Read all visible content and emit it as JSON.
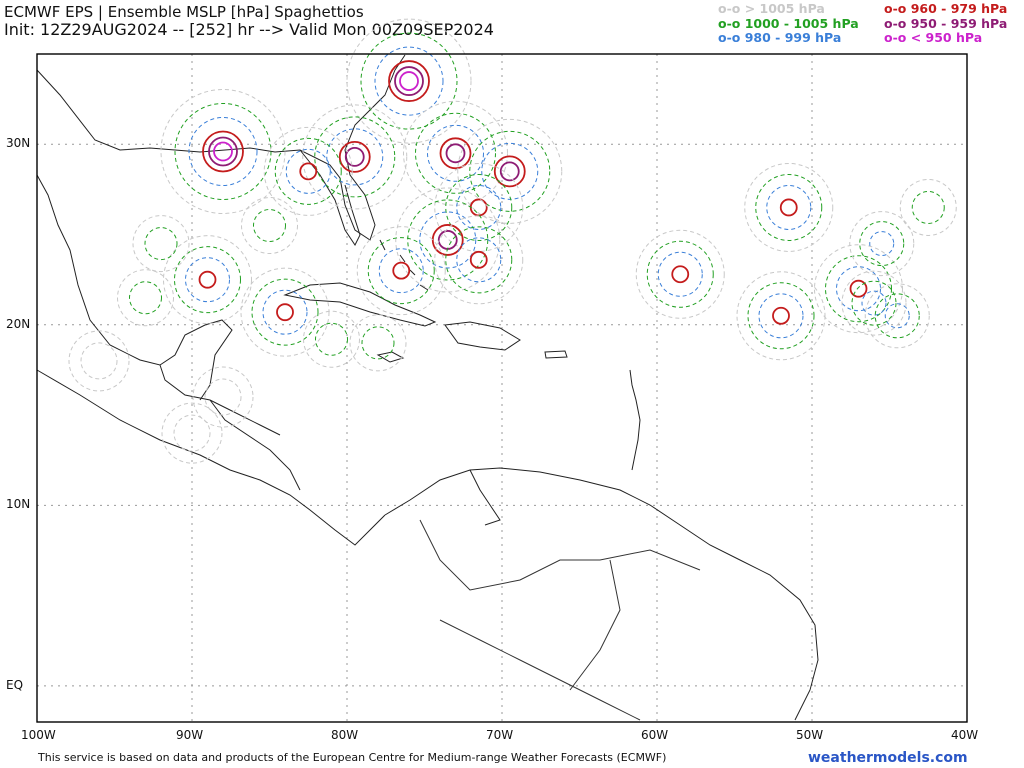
{
  "title": {
    "line1": "ECMWF EPS | Ensemble MSLP [hPa] Spaghettios",
    "line2": "Init: 12Z29AUG2024 -- [252] hr --> Valid Mon 00Z09SEP2024"
  },
  "legend": [
    {
      "label": "o-o > 1005 hPa",
      "color": "#c8c8c8"
    },
    {
      "label": "o-o 1000 - 1005 hPa",
      "color": "#22a022"
    },
    {
      "label": "o-o 980 - 999 hPa",
      "color": "#3a7fd8"
    },
    {
      "label": "o-o 960 - 979 hPa",
      "color": "#c41c1c"
    },
    {
      "label": "o-o 950 - 959 hPa",
      "color": "#8e1c74"
    },
    {
      "label": "o-o < 950 hPa",
      "color": "#cc22cc"
    }
  ],
  "axes": {
    "x_ticks": [
      "100W",
      "90W",
      "80W",
      "70W",
      "60W",
      "50W",
      "40W"
    ],
    "y_ticks": [
      "30N",
      "20N",
      "10N",
      "EQ"
    ]
  },
  "footer": {
    "attribution": "This service is based on data and products of the European Centre for Medium-range Weather Forecasts (ECMWF)",
    "brand": "weathermodels.com"
  },
  "map_data": {
    "lon_range": [
      -100,
      -40
    ],
    "lat_range": [
      -2,
      35
    ],
    "lows": [
      {
        "lon": -76,
        "lat": 33.5,
        "cat": "lt950"
      },
      {
        "lon": -88,
        "lat": 29.6,
        "cat": "lt950"
      },
      {
        "lon": -79.5,
        "lat": 29.3,
        "cat": "950-959"
      },
      {
        "lon": -73,
        "lat": 29.5,
        "cat": "950-959"
      },
      {
        "lon": -69.5,
        "lat": 28.5,
        "cat": "950-959"
      },
      {
        "lon": -82.5,
        "lat": 28.5,
        "cat": "960-979"
      },
      {
        "lon": -71.5,
        "lat": 26.5,
        "cat": "960-979"
      },
      {
        "lon": -73.5,
        "lat": 24.7,
        "cat": "950-959"
      },
      {
        "lon": -71.5,
        "lat": 23.6,
        "cat": "960-979"
      },
      {
        "lon": -89,
        "lat": 22.5,
        "cat": "960-979"
      },
      {
        "lon": -84,
        "lat": 20.7,
        "cat": "960-979"
      },
      {
        "lon": -76.5,
        "lat": 23,
        "cat": "960-979"
      },
      {
        "lon": -51.5,
        "lat": 26.5,
        "cat": "960-979"
      },
      {
        "lon": -58.5,
        "lat": 22.8,
        "cat": "960-979"
      },
      {
        "lon": -47,
        "lat": 22,
        "cat": "960-979"
      },
      {
        "lon": -52,
        "lat": 20.5,
        "cat": "960-979"
      },
      {
        "lon": -44.5,
        "lat": 20.5,
        "cat": "980-999"
      },
      {
        "lon": -46,
        "lat": 21.2,
        "cat": "980-999"
      },
      {
        "lon": -45.5,
        "lat": 24.5,
        "cat": "980-999"
      },
      {
        "lon": -42.5,
        "lat": 26.5,
        "cat": "1000-1005"
      },
      {
        "lon": -92,
        "lat": 24.5,
        "cat": "1000-1005"
      },
      {
        "lon": -85,
        "lat": 25.5,
        "cat": "1000-1005"
      },
      {
        "lon": -93,
        "lat": 21.5,
        "cat": "1000-1005"
      },
      {
        "lon": -78,
        "lat": 19,
        "cat": "1000-1005"
      },
      {
        "lon": -81,
        "lat": 19.2,
        "cat": "1000-1005"
      },
      {
        "lon": -88,
        "lat": 16,
        "cat": "gt1005"
      },
      {
        "lon": -96,
        "lat": 18,
        "cat": "gt1005"
      },
      {
        "lon": -90,
        "lat": 14,
        "cat": "gt1005"
      }
    ]
  }
}
